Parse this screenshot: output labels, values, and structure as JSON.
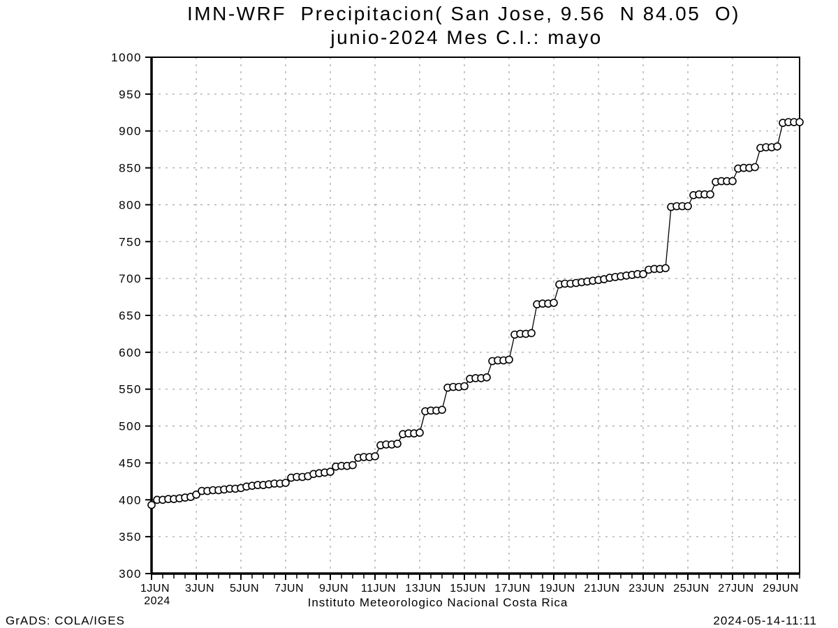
{
  "chart_data": {
    "type": "line",
    "title_line1": "IMN-WRF  Precipitacion( San Jose, 9.56  N 84.05  O)",
    "title_line2": "junio-2024 Mes C.I.: mayo",
    "xlabel": "Instituto Meteorologico Nacional Costa Rica",
    "ylabel": "",
    "x_start": "1JUN2024 00:00",
    "step_hours": 6,
    "x_span_days": 29,
    "x_tick_interval_days": 2,
    "x_tick_labels": [
      "1JUN",
      "3JUN",
      "5JUN",
      "7JUN",
      "9JUN",
      "11JUN",
      "13JUN",
      "15JUN",
      "17JUN",
      "19JUN",
      "21JUN",
      "23JUN",
      "25JUN",
      "27JUN",
      "29JUN"
    ],
    "x_year_label": "2024",
    "ylim": [
      300,
      1000
    ],
    "y_tick_step": 50,
    "grid": "dotted",
    "legend": "none",
    "marker": "open-circle",
    "values": [
      393,
      400,
      400,
      401,
      401,
      402,
      403,
      404,
      407,
      412,
      412,
      413,
      413,
      414,
      415,
      415,
      416,
      418,
      419,
      420,
      420,
      421,
      422,
      422,
      423,
      430,
      431,
      431,
      432,
      435,
      436,
      437,
      438,
      445,
      446,
      446,
      447,
      457,
      458,
      458,
      459,
      474,
      475,
      475,
      476,
      489,
      490,
      490,
      491,
      520,
      521,
      521,
      522,
      552,
      553,
      553,
      554,
      564,
      565,
      565,
      566,
      588,
      589,
      589,
      590,
      624,
      625,
      625,
      626,
      665,
      666,
      666,
      667,
      692,
      693,
      693,
      694,
      695,
      696,
      697,
      698,
      699,
      701,
      702,
      703,
      704,
      705,
      706,
      706,
      712,
      713,
      713,
      714,
      797,
      798,
      798,
      798,
      813,
      814,
      814,
      814,
      831,
      832,
      832,
      832,
      849,
      850,
      850,
      851,
      877,
      878,
      878,
      879,
      911,
      912,
      912,
      912
    ]
  },
  "footer": {
    "left": "GrADS: COLA/IGES",
    "right": "2024-05-14-11:11"
  },
  "colors": {
    "line": "#000000",
    "marker_fill": "#ffffff",
    "grid": "#aaaaaa",
    "text": "#000000",
    "background": "#ffffff"
  }
}
